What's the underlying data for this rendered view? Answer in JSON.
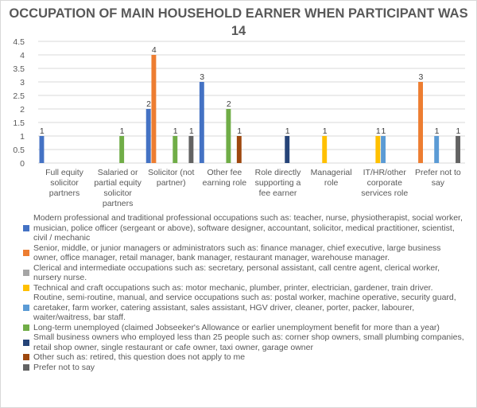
{
  "chart_data": {
    "type": "bar",
    "title": "OCCUPATION OF MAIN HOUSEHOLD EARNER WHEN PARTICIPANT WAS 14",
    "xlabel": "",
    "ylabel": "",
    "ylim": [
      0,
      4.5
    ],
    "yticks": [
      "0",
      "0.5",
      "1",
      "1.5",
      "2",
      "2.5",
      "3",
      "3.5",
      "4",
      "4.5"
    ],
    "grid": true,
    "legend_placement": "bottom",
    "categories": [
      "Full equity solicitor partners",
      "Salaried or partial equity solicitor partners",
      "Solicitor (not partner)",
      "Other fee earning role",
      "Role directly supporting a fee earner",
      "Managerial role",
      "IT/HR/other corporate services role",
      "Prefer not to say"
    ],
    "series": [
      {
        "name": "Modern professional and traditional professional occupations such as: teacher, nurse, physiotherapist, social worker, musician, police officer (sergeant or above), software designer, accountant, solicitor, medical practitioner, scientist, civil / mechanic",
        "color": "#4472c4",
        "values": [
          1,
          null,
          2,
          3,
          null,
          null,
          null,
          null
        ]
      },
      {
        "name": "Senior, middle, or junior managers or administrators such as: finance manager, chief executive, large business owner, office manager, retail manager, bank manager, restaurant manager, warehouse manager.",
        "color": "#ed7d31",
        "values": [
          null,
          null,
          4,
          null,
          null,
          null,
          null,
          3
        ]
      },
      {
        "name": "Clerical and intermediate occupations such as: secretary, personal assistant, call centre agent, clerical worker, nursery nurse.",
        "color": "#a5a5a5",
        "values": [
          null,
          null,
          null,
          null,
          null,
          null,
          null,
          null
        ]
      },
      {
        "name": "Technical and craft occupations such as: motor mechanic, plumber, printer, electrician, gardener, train driver.",
        "color": "#ffc000",
        "values": [
          null,
          null,
          null,
          null,
          null,
          1,
          1,
          null
        ]
      },
      {
        "name": "Routine, semi-routine, manual, and service occupations such as: postal worker, machine operative, security guard, caretaker, farm worker, catering assistant, sales assistant, HGV driver, cleaner, porter, packer, labourer, waiter/waitress, bar staff.",
        "color": "#5b9bd5",
        "values": [
          null,
          null,
          null,
          null,
          null,
          null,
          1,
          1
        ]
      },
      {
        "name": "Long-term unemployed (claimed Jobseeker's Allowance or earlier unemployment benefit for more than a year)",
        "color": "#70ad47",
        "values": [
          null,
          1,
          1,
          2,
          null,
          null,
          null,
          null
        ]
      },
      {
        "name": "Small business owners who employed less than 25 people such as: corner shop owners, small plumbing companies, retail shop owner, single restaurant or cafe owner, taxi owner, garage owner",
        "color": "#264478",
        "values": [
          null,
          null,
          null,
          null,
          1,
          null,
          null,
          null
        ]
      },
      {
        "name": "Other such as: retired, this question does not apply to me",
        "color": "#9e480e",
        "values": [
          null,
          null,
          null,
          1,
          null,
          null,
          null,
          null
        ]
      },
      {
        "name": "Prefer not to say",
        "color": "#636363",
        "values": [
          null,
          null,
          1,
          null,
          null,
          null,
          null,
          1
        ]
      }
    ]
  }
}
